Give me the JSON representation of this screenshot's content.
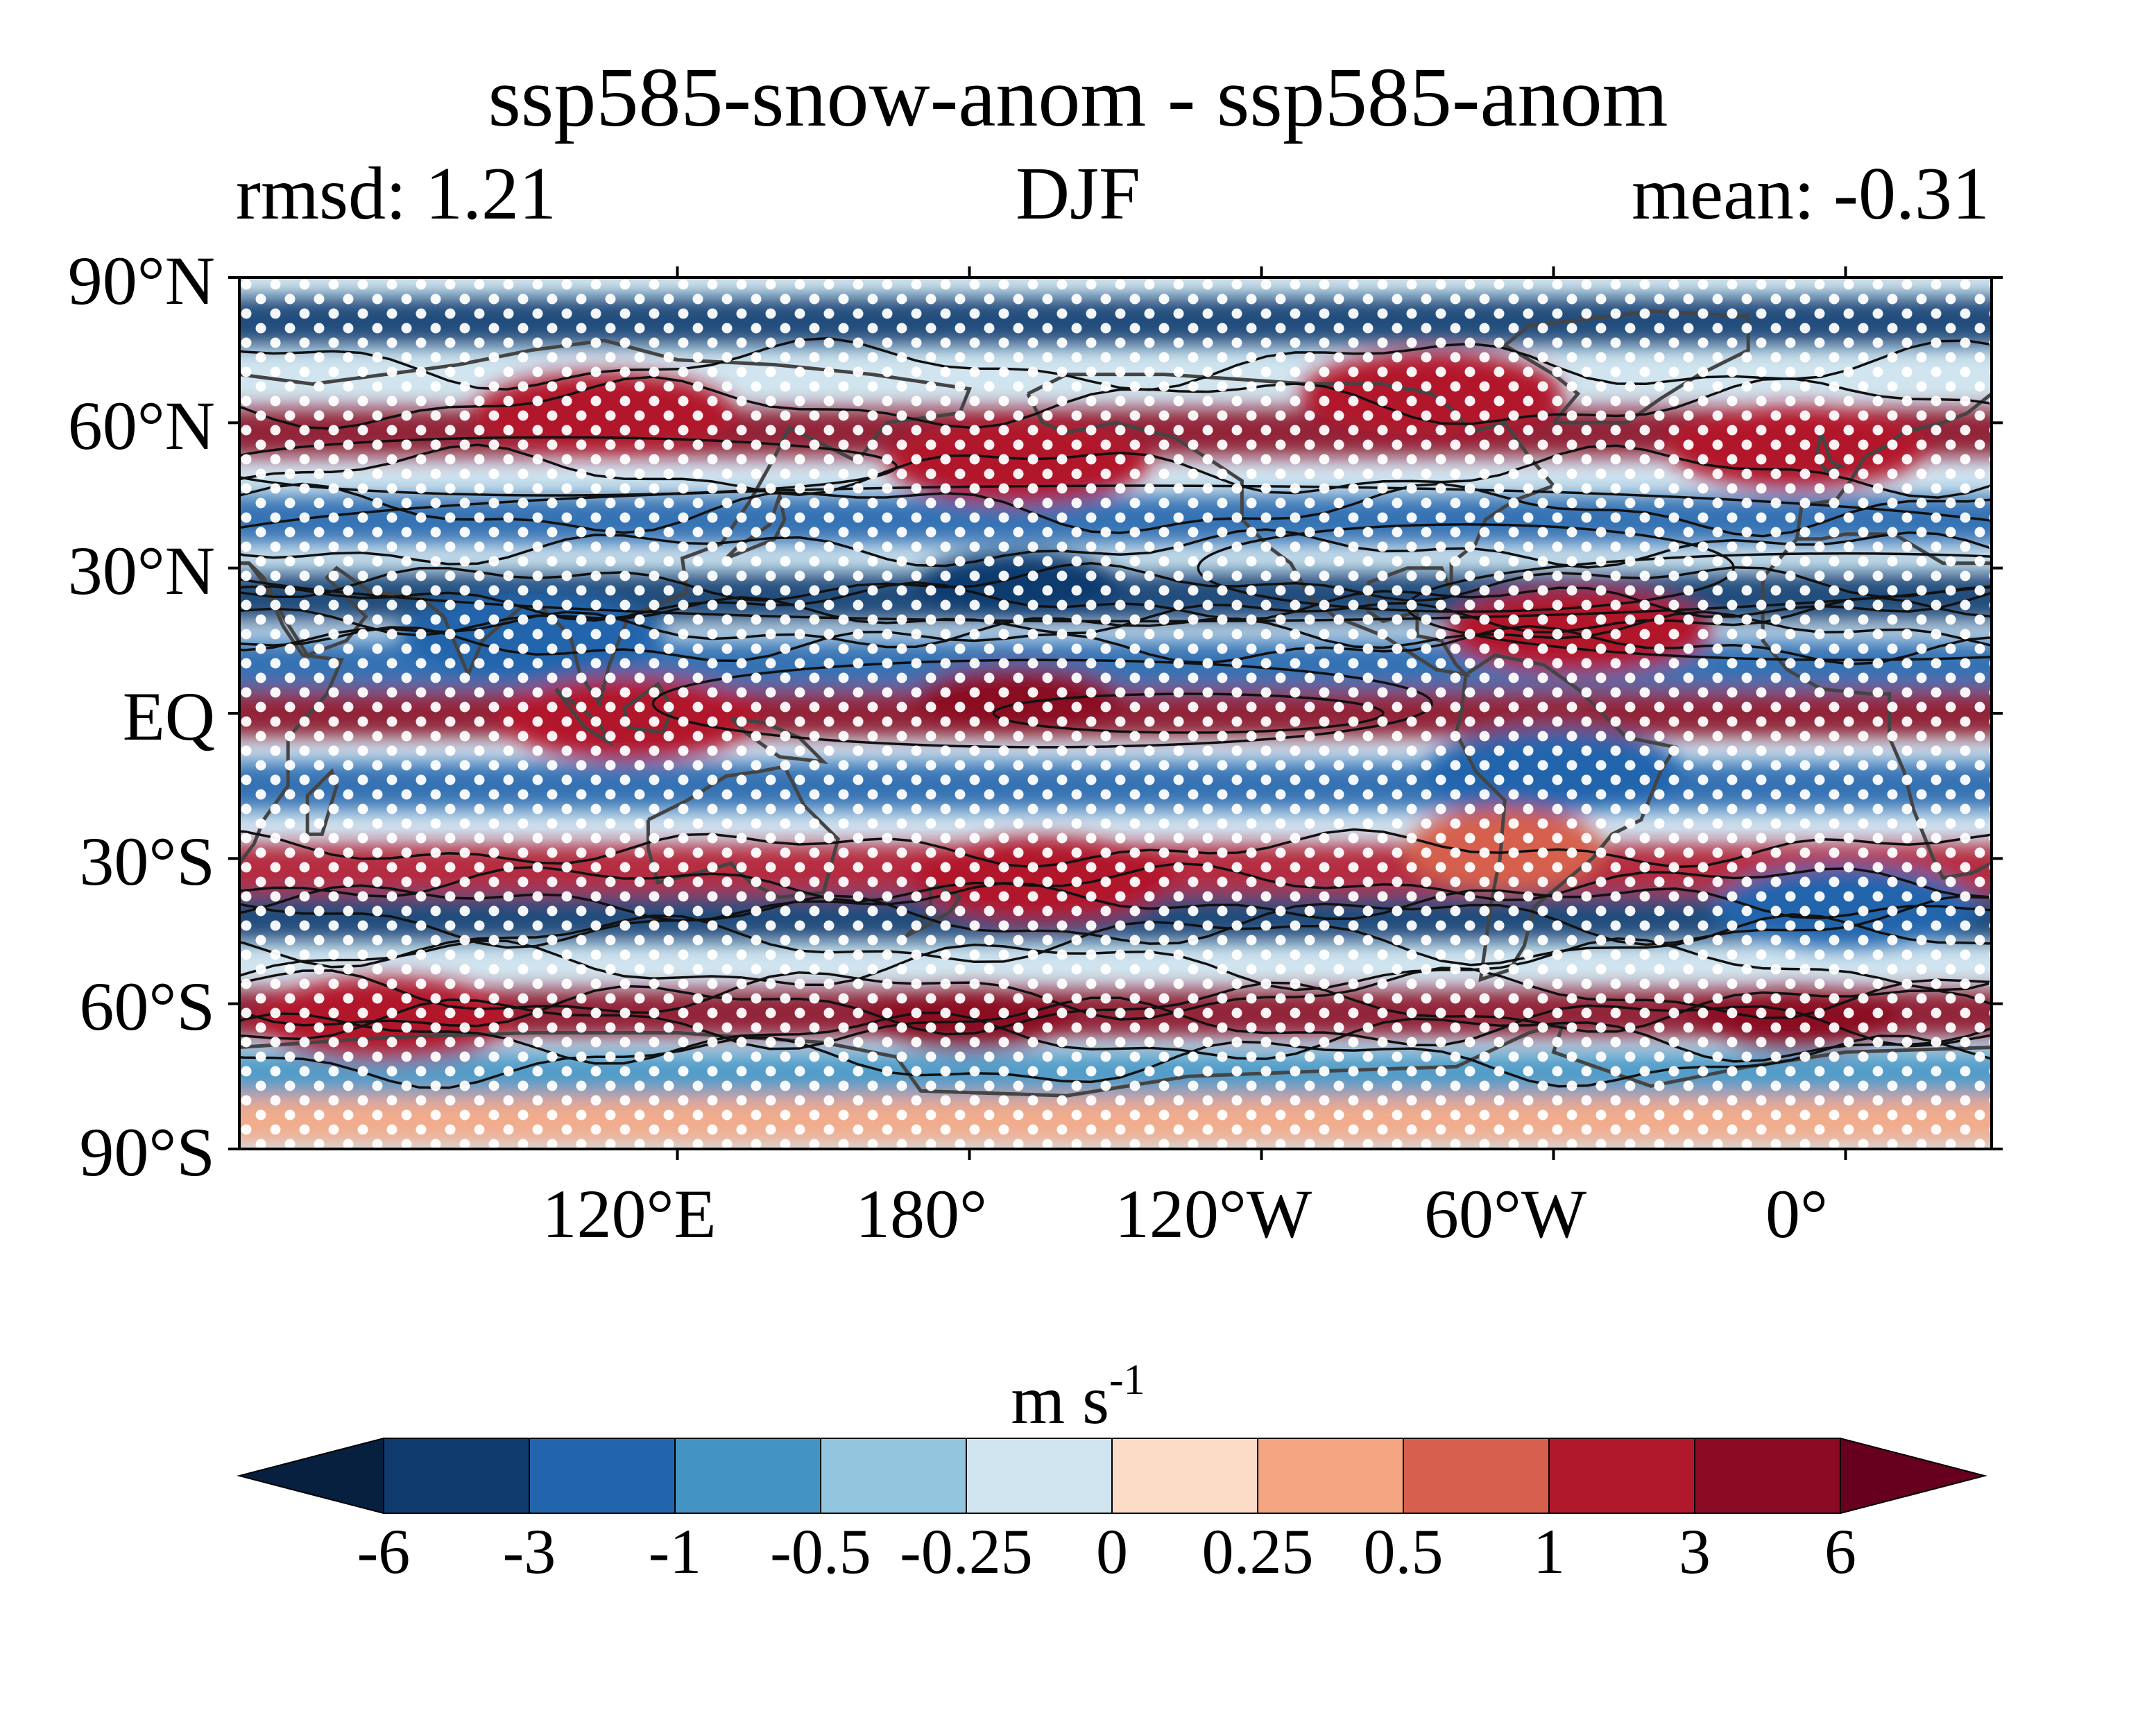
{
  "figure": {
    "title": "ssp585-snow-anom - ssp585-anom",
    "left_subtitle": "rmsd: 1.21",
    "center_subtitle": "DJF",
    "right_subtitle": "mean: -0.31"
  },
  "chart_data": {
    "type": "heatmap",
    "title": "ssp585-snow-anom - ssp585-anom",
    "season": "DJF",
    "statistics": {
      "rmsd": 1.21,
      "mean": -0.31
    },
    "projection": "PlateCarree, central longitude 150",
    "lon_range": [
      30,
      390
    ],
    "lat_range": [
      -90,
      90
    ],
    "y_ticks": [
      "90°N",
      "60°N",
      "30°N",
      "EQ",
      "30°S",
      "60°S",
      "90°S"
    ],
    "x_ticks": [
      "120°E",
      "180°",
      "120°W",
      "60°W",
      "0°"
    ],
    "colorbar": {
      "label": "m s",
      "label_superscript": "-1",
      "levels": [
        "-6",
        "-3",
        "-1",
        "-0.5",
        "-0.25",
        "0",
        "0.25",
        "0.5",
        "1",
        "3",
        "6"
      ],
      "colors": [
        "#08203f",
        "#0e3a6e",
        "#2265ad",
        "#4393c3",
        "#92c5de",
        "#d1e5f0",
        "#fcdbc7",
        "#f4a582",
        "#d6604d",
        "#b2182b",
        "#8b0a24",
        "#67001f"
      ],
      "extend": "both"
    },
    "anomaly_bands": [
      {
        "lat": 81,
        "sign": -1,
        "magnitude": 2
      },
      {
        "lat": 58,
        "sign": 1,
        "magnitude": 2
      },
      {
        "lat": 40,
        "sign": -1,
        "magnitude": 1
      },
      {
        "lat": 24,
        "sign": -1,
        "magnitude": 3
      },
      {
        "lat": 10,
        "sign": -1,
        "magnitude": 1
      },
      {
        "lat": 0,
        "sign": 1,
        "magnitude": 2
      },
      {
        "lat": -15,
        "sign": -1,
        "magnitude": 1
      },
      {
        "lat": -32,
        "sign": 1,
        "magnitude": 1
      },
      {
        "lat": -42,
        "sign": -1,
        "magnitude": 2
      },
      {
        "lat": -62,
        "sign": 1,
        "magnitude": 3
      },
      {
        "lat": -75,
        "sign": -1,
        "magnitude": 0.5
      },
      {
        "lat": -84,
        "sign": 1,
        "magnitude": 0.25
      }
    ],
    "anomaly_blobs": [
      {
        "lon": 105,
        "lat": 62,
        "sign": 1,
        "value": 3
      },
      {
        "lon": 190,
        "lat": 52,
        "sign": 1,
        "value": 3
      },
      {
        "lon": 275,
        "lat": 66,
        "sign": 1,
        "value": 3
      },
      {
        "lon": 350,
        "lat": 55,
        "sign": 1,
        "value": 3
      },
      {
        "lon": 190,
        "lat": 27,
        "sign": -1,
        "value": -6
      },
      {
        "lon": 90,
        "lat": 16,
        "sign": -1,
        "value": -3
      },
      {
        "lon": 305,
        "lat": 17,
        "sign": 1,
        "value": 3
      },
      {
        "lon": 190,
        "lat": 3,
        "sign": 1,
        "value": 6
      },
      {
        "lon": 110,
        "lat": -1,
        "sign": 1,
        "value": 3
      },
      {
        "lon": 300,
        "lat": -12,
        "sign": -1,
        "value": -3
      },
      {
        "lon": 195,
        "lat": -34,
        "sign": 1,
        "value": 3
      },
      {
        "lon": 290,
        "lat": -28,
        "sign": 1,
        "value": 1
      },
      {
        "lon": 180,
        "lat": -63,
        "sign": 1,
        "value": 6
      },
      {
        "lon": 350,
        "lat": -63,
        "sign": 1,
        "value": 6
      },
      {
        "lon": 60,
        "lat": -63,
        "sign": 1,
        "value": 3
      },
      {
        "lon": 360,
        "lat": -40,
        "sign": -1,
        "value": -3
      }
    ],
    "contour_field": "climatological zonal wind (black contours)",
    "stippling": "statistically significant grid points (white dots)"
  }
}
